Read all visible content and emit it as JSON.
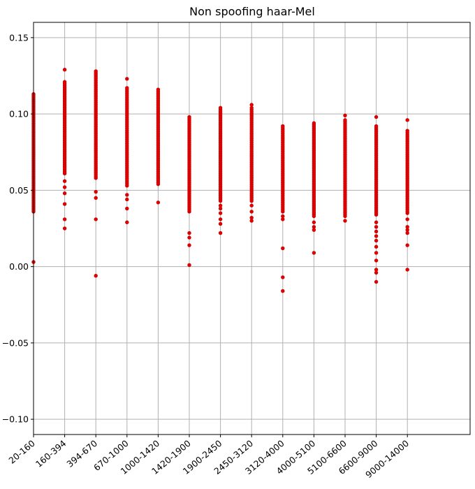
{
  "chart_data": {
    "type": "scatter",
    "title": "Non spoofing haar-Mel",
    "xlabel": "",
    "ylabel": "",
    "categories": [
      "20-160",
      "160-394",
      "394-670",
      "670-1000",
      "1000-1420",
      "1420-1900",
      "1900-2450",
      "2450-3120",
      "3120-4000",
      "4000-5100",
      "5100-6600",
      "6600-9000",
      "9000-14000"
    ],
    "ylim": [
      -0.11,
      0.16
    ],
    "yticks": [
      -0.1,
      -0.05,
      0.0,
      0.05,
      0.1,
      0.15
    ],
    "ytick_labels": [
      "−0.10",
      "−0.05",
      "0.00",
      "0.05",
      "0.10",
      "0.15"
    ],
    "grid": true,
    "marker_color": "#e00000",
    "series": [
      {
        "points_by_category": [
          {
            "range": [
              0.036,
              0.113
            ],
            "outliers": [
              0.003
            ]
          },
          {
            "range": [
              0.061,
              0.121
            ],
            "outliers": [
              0.025,
              0.031,
              0.041,
              0.048,
              0.052,
              0.056,
              0.129
            ]
          },
          {
            "range": [
              0.058,
              0.128
            ],
            "outliers": [
              -0.006,
              0.031,
              0.045,
              0.049
            ]
          },
          {
            "range": [
              0.053,
              0.117
            ],
            "outliers": [
              0.029,
              0.038,
              0.044,
              0.047,
              0.123
            ]
          },
          {
            "range": [
              0.054,
              0.116
            ],
            "outliers": [
              0.042
            ]
          },
          {
            "range": [
              0.036,
              0.098
            ],
            "outliers": [
              0.001,
              0.014,
              0.019,
              0.022
            ]
          },
          {
            "range": [
              0.043,
              0.104
            ],
            "outliers": [
              0.022,
              0.028,
              0.031,
              0.035,
              0.038,
              0.04
            ]
          },
          {
            "range": [
              0.043,
              0.104
            ],
            "outliers": [
              0.03,
              0.032,
              0.036,
              0.04,
              0.106
            ]
          },
          {
            "range": [
              0.036,
              0.092
            ],
            "outliers": [
              -0.016,
              -0.007,
              0.012,
              0.031,
              0.033
            ]
          },
          {
            "range": [
              0.033,
              0.094
            ],
            "outliers": [
              0.009,
              0.024,
              0.026,
              0.029
            ]
          },
          {
            "range": [
              0.033,
              0.096
            ],
            "outliers": [
              0.03,
              0.099
            ]
          },
          {
            "range": [
              0.034,
              0.092
            ],
            "outliers": [
              -0.01,
              -0.004,
              -0.002,
              0.004,
              0.009,
              0.013,
              0.017,
              0.02,
              0.023,
              0.026,
              0.029,
              0.098
            ]
          },
          {
            "range": [
              0.035,
              0.089
            ],
            "outliers": [
              -0.002,
              0.014,
              0.022,
              0.024,
              0.026,
              0.031,
              0.096
            ]
          }
        ]
      }
    ]
  }
}
